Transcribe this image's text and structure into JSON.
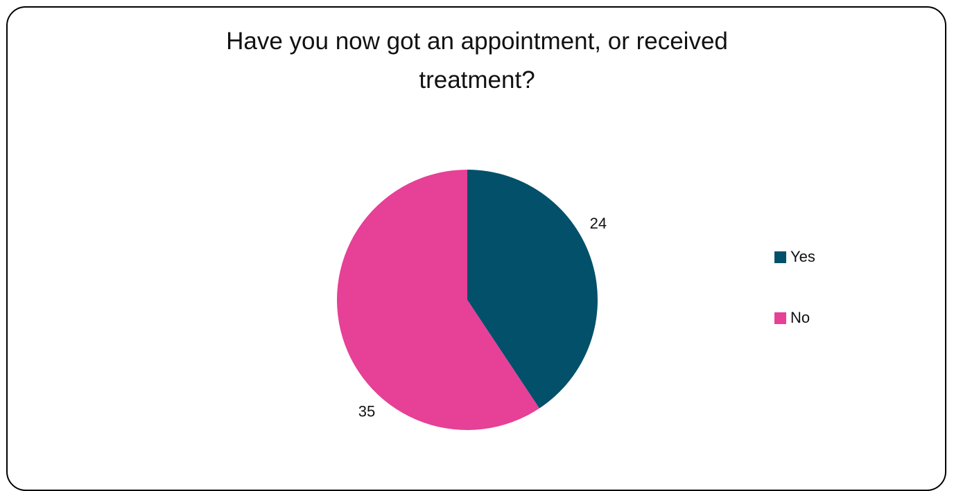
{
  "title_lines": [
    "Have you now got an appointment, or received",
    "treatment?"
  ],
  "chart_data": {
    "type": "pie",
    "title": "Have you now got an appointment, or received treatment?",
    "slices": [
      {
        "label": "Yes",
        "value": 24,
        "color": "#02506A"
      },
      {
        "label": "No",
        "value": 35,
        "color": "#E64097"
      }
    ],
    "data_labels": [
      "24",
      "35"
    ],
    "legend": {
      "placement": "right",
      "entries": [
        "Yes",
        "No"
      ]
    },
    "start_angle_deg": 0,
    "direction": "clockwise"
  }
}
